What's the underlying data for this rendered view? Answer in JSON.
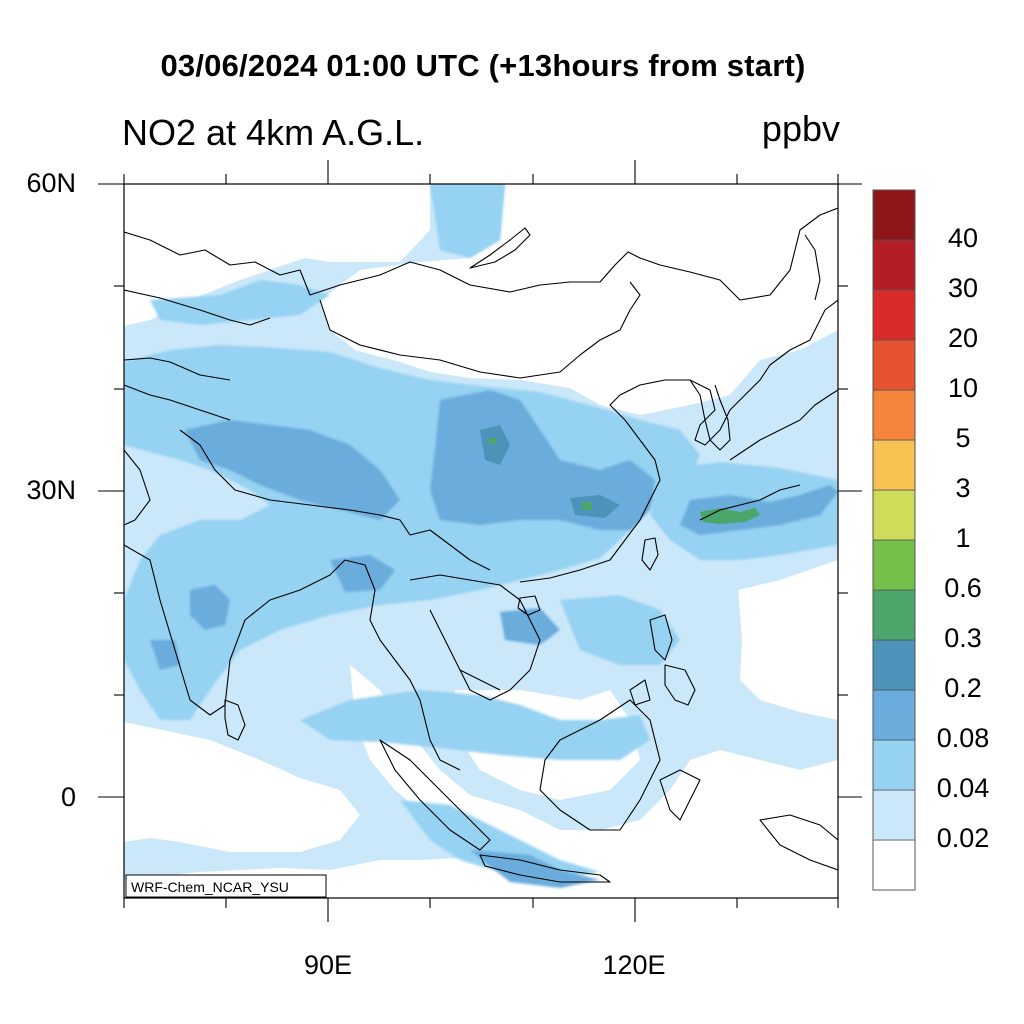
{
  "title": "03/06/2024 01:00 UTC (+13hours from start)",
  "subtitle": "NO2 at 4km A.G.L.",
  "units": "ppbv",
  "model_label": "WRF-Chem_NCAR_YSU",
  "lat_labels": [
    {
      "label": "60N",
      "lat": 60
    },
    {
      "label": "30N",
      "lat": 30
    },
    {
      "label": "0",
      "lat": 0
    }
  ],
  "lon_labels": [
    {
      "label": "90E",
      "lon": 90
    },
    {
      "label": "120E",
      "lon": 120
    }
  ],
  "colorbar": {
    "levels": [
      "0.02",
      "0.04",
      "0.08",
      "0.2",
      "0.3",
      "0.6",
      "1",
      "3",
      "5",
      "10",
      "20",
      "30",
      "40"
    ],
    "colors": [
      "#ffffff",
      "#cbe8fa",
      "#96d2f2",
      "#6aacdc",
      "#4b93b8",
      "#4aa66a",
      "#74c04b",
      "#cfdc5a",
      "#f8c253",
      "#f4853a",
      "#e6532f",
      "#d92b2b",
      "#b51d24",
      "#8e1518"
    ]
  },
  "colors": {
    "land_outline": "#000000",
    "clean_air": "#ffffff"
  }
}
